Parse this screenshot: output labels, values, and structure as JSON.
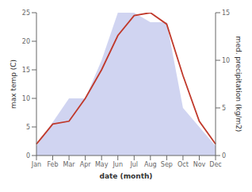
{
  "chart_data": {
    "type": "line",
    "xlabel": "date (month)",
    "ylabel": "max temp (C)",
    "y2label": "med. precipitation (kg/m2)",
    "categories": [
      "Jan",
      "Feb",
      "Mar",
      "Apr",
      "May",
      "Jun",
      "Jul",
      "Aug",
      "Sep",
      "Oct",
      "Nov",
      "Dec"
    ],
    "series": [
      {
        "type": "area",
        "axis": "y2",
        "color": "#b0b8e8",
        "values": [
          1,
          3.5,
          6,
          6,
          10,
          15,
          15,
          14,
          14,
          5,
          3,
          1
        ]
      },
      {
        "type": "line",
        "color": "#c0392b",
        "values": [
          2,
          5.5,
          6,
          10,
          15,
          21,
          24.5,
          25,
          23,
          14,
          6,
          2
        ]
      }
    ],
    "ylim": [
      0,
      25
    ],
    "yticks": [
      0,
      5,
      10,
      15,
      20,
      25
    ],
    "y2lim": [
      0,
      15
    ],
    "y2ticks": [
      0,
      5,
      10,
      15
    ],
    "grid": false
  }
}
